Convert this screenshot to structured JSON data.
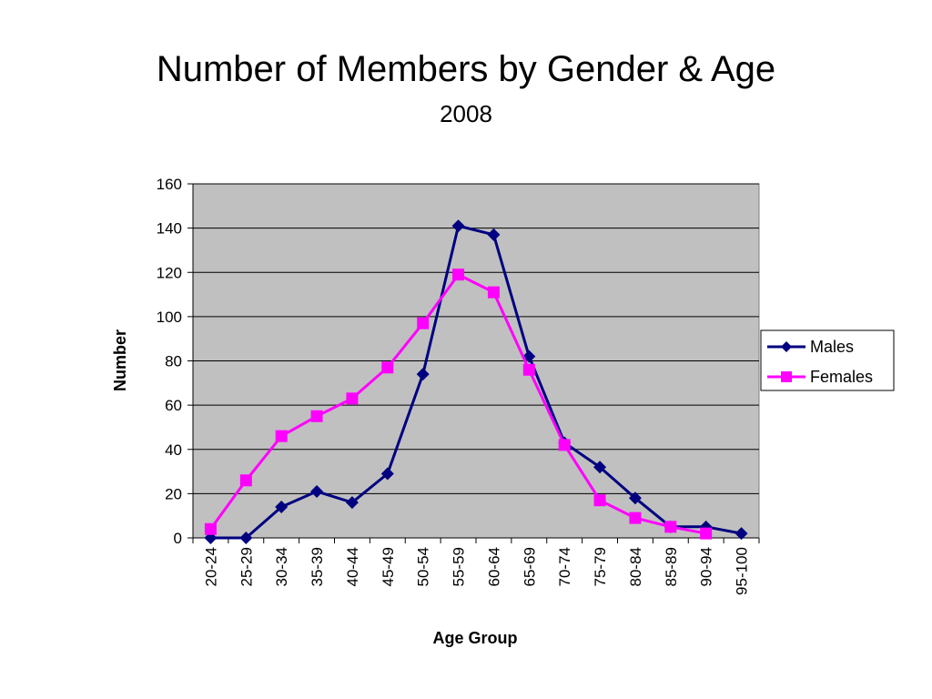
{
  "header": {
    "title": "Number of Members by Gender & Age",
    "subtitle": "2008"
  },
  "chart_data": {
    "type": "line",
    "title": "Number of Members by Gender & Age",
    "subtitle": "2008",
    "xlabel": "Age Group",
    "ylabel": "Number",
    "ylim": [
      0,
      160
    ],
    "yticks": [
      0,
      20,
      40,
      60,
      80,
      100,
      120,
      140,
      160
    ],
    "grid": true,
    "legend_position": "right",
    "plot_background": "#c0c0c0",
    "categories": [
      "20-24",
      "25-29",
      "30-34",
      "35-39",
      "40-44",
      "45-49",
      "50-54",
      "55-59",
      "60-64",
      "65-69",
      "70-74",
      "75-79",
      "80-84",
      "85-89",
      "90-94",
      "95-100"
    ],
    "series": [
      {
        "name": "Males",
        "color": "#000080",
        "marker": "diamond",
        "values": [
          0,
          0,
          14,
          21,
          16,
          29,
          74,
          141,
          137,
          82,
          43,
          32,
          18,
          5,
          5,
          2
        ]
      },
      {
        "name": "Females",
        "color": "#ff00ff",
        "marker": "square",
        "values": [
          4,
          26,
          46,
          55,
          63,
          77,
          97,
          119,
          111,
          76,
          42,
          17,
          9,
          5,
          2,
          null
        ]
      }
    ]
  }
}
